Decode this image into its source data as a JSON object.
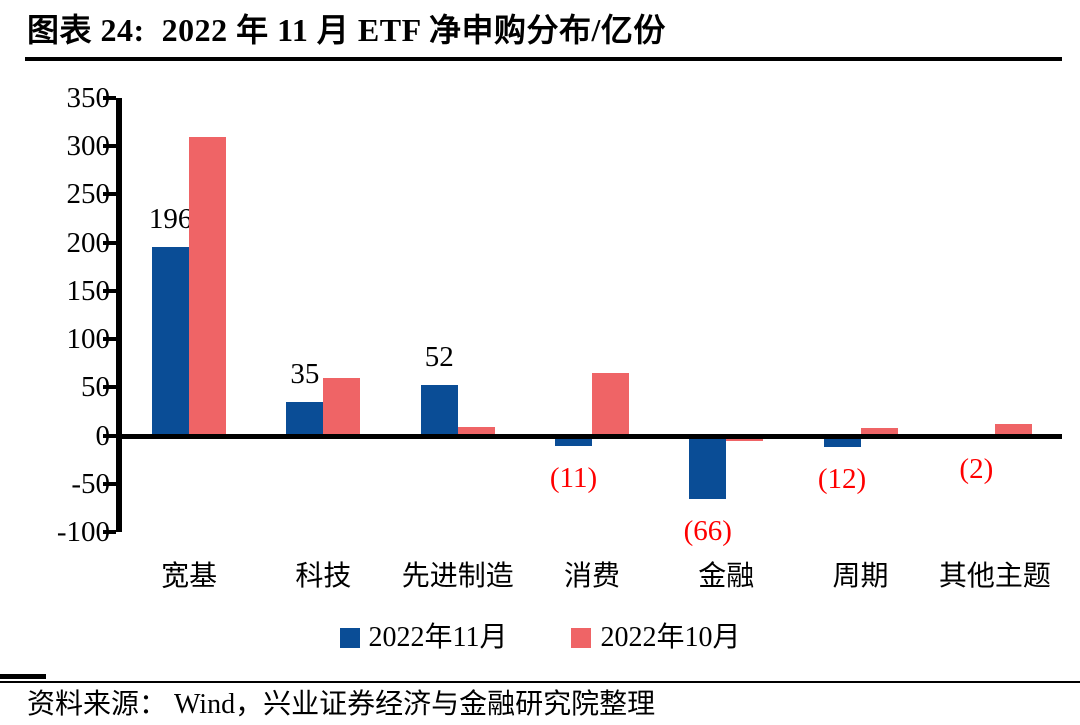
{
  "title": "图表 24:  2022 年 11 月 ETF 净申购分布/亿份",
  "source": "资料来源： Wind，兴业证券经济与金融研究院整理",
  "colors": {
    "series_november_blue": "#0A4D96",
    "series_october_red": "#EF6466",
    "negative_label_red": "#FF0000",
    "axis_black": "#000000"
  },
  "legend": {
    "items": [
      {
        "label": "2022年11月",
        "color": "#0A4D96"
      },
      {
        "label": "2022年10月",
        "color": "#EF6466"
      }
    ]
  },
  "chart_data": {
    "type": "bar",
    "title": "2022 年 11 月 ETF 净申购分布/亿份",
    "unit": "亿份",
    "categories": [
      "宽基",
      "科技",
      "先进制造",
      "消费",
      "金融",
      "周期",
      "其他主题"
    ],
    "series": [
      {
        "name": "2022年11月",
        "color": "#0A4D96",
        "values": [
          196,
          35,
          52,
          -11,
          -66,
          -12,
          -2
        ],
        "labels": [
          "196",
          "35",
          "52",
          "(11)",
          "(66)",
          "(12)",
          "(2)"
        ]
      },
      {
        "name": "2022年10月",
        "color": "#EF6466",
        "values": [
          310,
          60,
          9,
          65,
          -6,
          8,
          12
        ]
      }
    ],
    "xlabel": "",
    "ylabel": "",
    "ylim": [
      -100,
      350
    ],
    "yticks": [
      350,
      300,
      250,
      200,
      150,
      100,
      50,
      0,
      -50,
      -100
    ],
    "grid": false,
    "legend_position": "bottom",
    "positive_label_color": "#000000",
    "negative_label_color": "#FF0000"
  }
}
